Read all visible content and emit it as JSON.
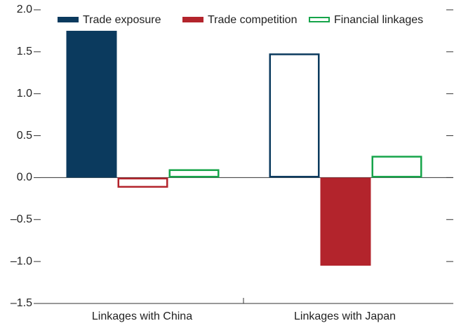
{
  "chart_data": {
    "type": "bar",
    "categories": [
      "Linkages with China",
      "Linkages with Japan"
    ],
    "series": [
      {
        "name": "Trade exposure",
        "color": "#0b3a5e",
        "values": [
          1.75,
          1.48
        ],
        "filled": [
          true,
          false
        ]
      },
      {
        "name": "Trade competition",
        "color": "#b3242c",
        "values": [
          -0.12,
          -1.05
        ],
        "filled": [
          false,
          true
        ]
      },
      {
        "name": "Financial linkages",
        "color": "#16a44a",
        "values": [
          0.1,
          0.26
        ],
        "filled": [
          false,
          false
        ]
      }
    ],
    "ylim": [
      -1.5,
      2.0
    ],
    "yticks": [
      {
        "value": -1.5,
        "label": "–1.5"
      },
      {
        "value": -1.0,
        "label": "–1.0"
      },
      {
        "value": -0.5,
        "label": "–0.5"
      },
      {
        "value": 0,
        "label": "0.0"
      },
      {
        "value": 0.5,
        "label": "0.5"
      },
      {
        "value": 1.0,
        "label": "1.0"
      },
      {
        "value": 1.5,
        "label": "1.5"
      },
      {
        "value": 2.0,
        "label": "2.0"
      }
    ],
    "grid": false
  }
}
